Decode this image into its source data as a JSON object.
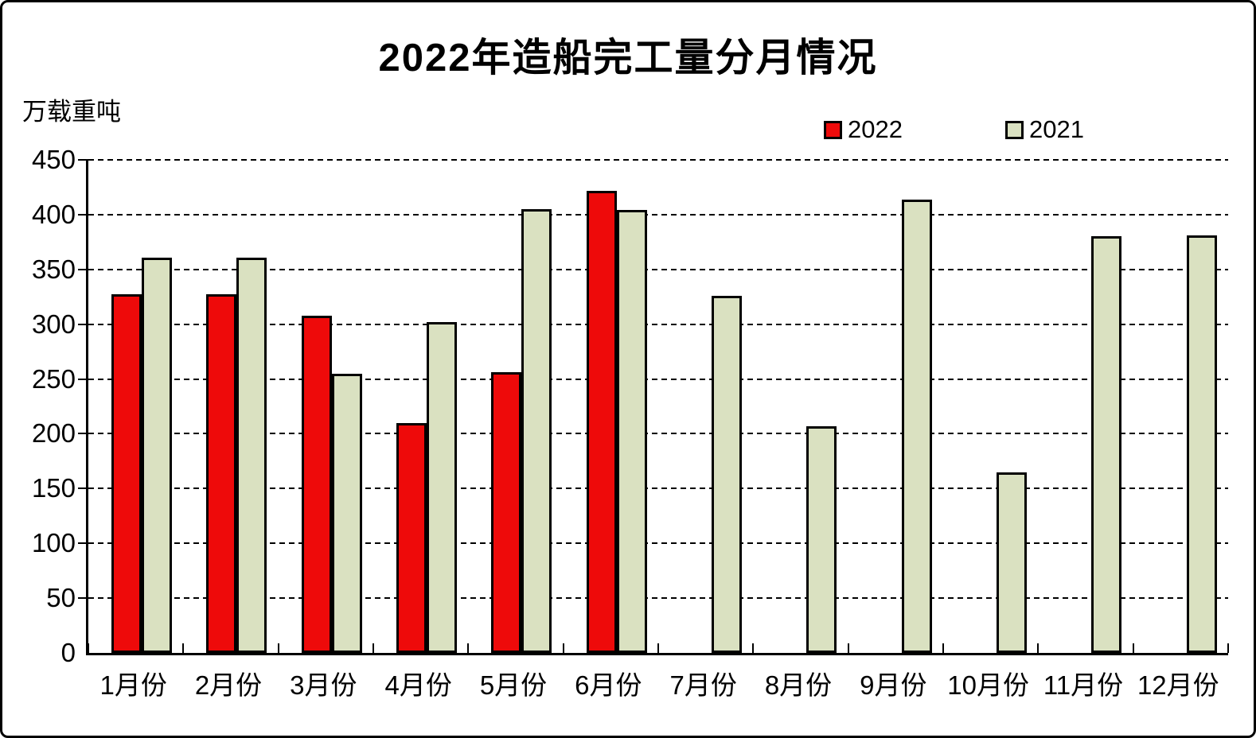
{
  "title": "2022年造船完工量分月情况",
  "y_axis_unit_label": "万载重吨",
  "colors": {
    "series_2022": "#EE0A0A",
    "series_2021": "#DAE1C1",
    "bar_outline": "#000000",
    "grid": "#000000",
    "background": "#FFFFFF"
  },
  "chart_data": {
    "type": "bar",
    "title": "2022年造船完工量分月情况",
    "ylabel": "万载重吨",
    "xlabel": "",
    "categories": [
      "1月份",
      "2月份",
      "3月份",
      "4月份",
      "5月份",
      "6月份",
      "7月份",
      "8月份",
      "9月份",
      "10月份",
      "11月份",
      "12月份"
    ],
    "series": [
      {
        "name": "2022",
        "color": "#EE0A0A",
        "values": [
          327,
          327,
          308,
          210,
          256,
          422,
          null,
          null,
          null,
          null,
          null,
          null
        ]
      },
      {
        "name": "2021",
        "color": "#DAE1C1",
        "values": [
          361,
          361,
          255,
          302,
          405,
          404,
          326,
          207,
          414,
          165,
          380,
          381
        ]
      }
    ],
    "ylim": [
      0,
      450
    ],
    "ytick_interval": 50,
    "yticks": [
      0,
      50,
      100,
      150,
      200,
      250,
      300,
      350,
      400,
      450
    ],
    "grid": "horizontal-dashed",
    "legend_position": "top-right",
    "bar_outline_color": "#000000"
  }
}
